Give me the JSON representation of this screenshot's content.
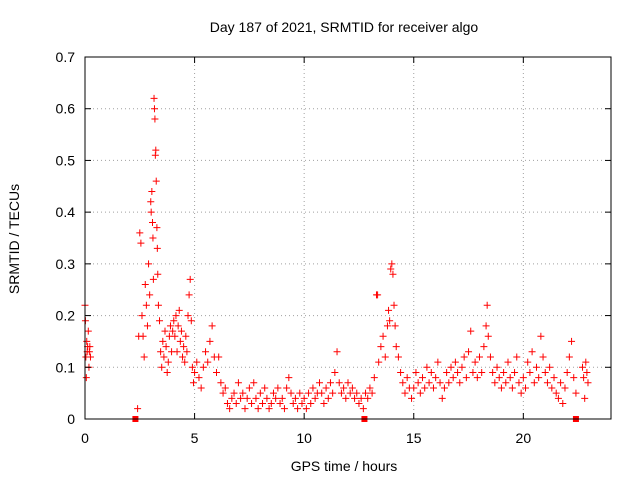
{
  "chart_data": {
    "type": "scatter",
    "title": "Day 187 of 2021, SRMTID for receiver algo",
    "xlabel": "GPS time / hours",
    "ylabel": "SRMTID / TECUs",
    "xlim": [
      0,
      24
    ],
    "ylim": [
      0,
      0.7
    ],
    "grid": true,
    "marker": "+",
    "x_ticks": [
      0,
      5,
      10,
      15,
      20
    ],
    "x_tick_labels": [
      "0",
      "5",
      "10",
      "15",
      "20"
    ],
    "y_ticks": [
      0,
      0.1,
      0.2,
      0.3,
      0.4,
      0.5,
      0.6,
      0.7
    ],
    "y_tick_labels": [
      "0",
      "0.1",
      "0.2",
      "0.3",
      "0.4",
      "0.5",
      "0.6",
      "0.7"
    ],
    "series_color": "#ff0000",
    "series": [
      {
        "name": "SRMTID",
        "points": [
          [
            0.0,
            0.22
          ],
          [
            0.02,
            0.19
          ],
          [
            0.04,
            0.12
          ],
          [
            0.06,
            0.08
          ],
          [
            0.08,
            0.15
          ],
          [
            0.1,
            0.13
          ],
          [
            0.12,
            0.14
          ],
          [
            0.15,
            0.17
          ],
          [
            0.18,
            0.1
          ],
          [
            0.2,
            0.13
          ],
          [
            0.22,
            0.14
          ],
          [
            0.25,
            0.12
          ],
          [
            2.4,
            0.02
          ],
          [
            2.45,
            0.16
          ],
          [
            2.5,
            0.36
          ],
          [
            2.55,
            0.34
          ],
          [
            2.6,
            0.2
          ],
          [
            2.65,
            0.16
          ],
          [
            2.7,
            0.12
          ],
          [
            2.75,
            0.26
          ],
          [
            2.8,
            0.22
          ],
          [
            2.85,
            0.18
          ],
          [
            2.9,
            0.3
          ],
          [
            2.95,
            0.24
          ],
          [
            3.0,
            0.42
          ],
          [
            3.02,
            0.4
          ],
          [
            3.05,
            0.44
          ],
          [
            3.08,
            0.38
          ],
          [
            3.1,
            0.35
          ],
          [
            3.12,
            0.27
          ],
          [
            3.15,
            0.62
          ],
          [
            3.17,
            0.6
          ],
          [
            3.19,
            0.58
          ],
          [
            3.21,
            0.51
          ],
          [
            3.23,
            0.52
          ],
          [
            3.25,
            0.46
          ],
          [
            3.28,
            0.37
          ],
          [
            3.3,
            0.33
          ],
          [
            3.32,
            0.28
          ],
          [
            3.35,
            0.22
          ],
          [
            3.4,
            0.19
          ],
          [
            3.45,
            0.13
          ],
          [
            3.5,
            0.1
          ],
          [
            3.55,
            0.15
          ],
          [
            3.6,
            0.12
          ],
          [
            3.65,
            0.17
          ],
          [
            3.7,
            0.14
          ],
          [
            3.75,
            0.09
          ],
          [
            3.8,
            0.11
          ],
          [
            3.85,
            0.16
          ],
          [
            3.9,
            0.18
          ],
          [
            3.95,
            0.13
          ],
          [
            4.0,
            0.17
          ],
          [
            4.05,
            0.19
          ],
          [
            4.1,
            0.16
          ],
          [
            4.15,
            0.2
          ],
          [
            4.2,
            0.13
          ],
          [
            4.25,
            0.18
          ],
          [
            4.3,
            0.21
          ],
          [
            4.35,
            0.15
          ],
          [
            4.4,
            0.17
          ],
          [
            4.45,
            0.12
          ],
          [
            4.5,
            0.14
          ],
          [
            4.55,
            0.11
          ],
          [
            4.6,
            0.16
          ],
          [
            4.65,
            0.13
          ],
          [
            4.7,
            0.2
          ],
          [
            4.75,
            0.24
          ],
          [
            4.8,
            0.27
          ],
          [
            4.85,
            0.19
          ],
          [
            4.9,
            0.1
          ],
          [
            4.95,
            0.07
          ],
          [
            5.0,
            0.09
          ],
          [
            5.1,
            0.11
          ],
          [
            5.2,
            0.08
          ],
          [
            5.3,
            0.06
          ],
          [
            5.4,
            0.1
          ],
          [
            5.5,
            0.13
          ],
          [
            5.6,
            0.11
          ],
          [
            5.7,
            0.15
          ],
          [
            5.8,
            0.18
          ],
          [
            5.9,
            0.12
          ],
          [
            6.0,
            0.09
          ],
          [
            6.1,
            0.12
          ],
          [
            6.2,
            0.07
          ],
          [
            6.3,
            0.05
          ],
          [
            6.4,
            0.06
          ],
          [
            6.5,
            0.03
          ],
          [
            6.6,
            0.02
          ],
          [
            6.7,
            0.04
          ],
          [
            6.8,
            0.05
          ],
          [
            6.9,
            0.03
          ],
          [
            7.0,
            0.07
          ],
          [
            7.1,
            0.04
          ],
          [
            7.2,
            0.05
          ],
          [
            7.3,
            0.02
          ],
          [
            7.4,
            0.04
          ],
          [
            7.5,
            0.06
          ],
          [
            7.6,
            0.03
          ],
          [
            7.7,
            0.07
          ],
          [
            7.8,
            0.04
          ],
          [
            7.9,
            0.02
          ],
          [
            8.0,
            0.05
          ],
          [
            8.1,
            0.03
          ],
          [
            8.2,
            0.06
          ],
          [
            8.3,
            0.04
          ],
          [
            8.4,
            0.02
          ],
          [
            8.5,
            0.03
          ],
          [
            8.6,
            0.05
          ],
          [
            8.7,
            0.04
          ],
          [
            8.8,
            0.06
          ],
          [
            8.9,
            0.03
          ],
          [
            9.0,
            0.04
          ],
          [
            9.1,
            0.02
          ],
          [
            9.2,
            0.06
          ],
          [
            9.3,
            0.08
          ],
          [
            9.4,
            0.05
          ],
          [
            9.5,
            0.03
          ],
          [
            9.6,
            0.04
          ],
          [
            9.7,
            0.02
          ],
          [
            9.8,
            0.05
          ],
          [
            9.9,
            0.03
          ],
          [
            10.0,
            0.04
          ],
          [
            10.1,
            0.02
          ],
          [
            10.2,
            0.05
          ],
          [
            10.3,
            0.03
          ],
          [
            10.4,
            0.06
          ],
          [
            10.5,
            0.04
          ],
          [
            10.6,
            0.05
          ],
          [
            10.7,
            0.07
          ],
          [
            10.8,
            0.05
          ],
          [
            10.9,
            0.03
          ],
          [
            11.0,
            0.06
          ],
          [
            11.1,
            0.04
          ],
          [
            11.2,
            0.07
          ],
          [
            11.3,
            0.05
          ],
          [
            11.4,
            0.09
          ],
          [
            11.5,
            0.13
          ],
          [
            11.6,
            0.07
          ],
          [
            11.7,
            0.05
          ],
          [
            11.8,
            0.06
          ],
          [
            11.9,
            0.04
          ],
          [
            12.0,
            0.07
          ],
          [
            12.1,
            0.05
          ],
          [
            12.2,
            0.06
          ],
          [
            12.3,
            0.04
          ],
          [
            12.4,
            0.05
          ],
          [
            12.5,
            0.03
          ],
          [
            12.6,
            0.04
          ],
          [
            12.7,
            0.02
          ],
          [
            12.8,
            0.05
          ],
          [
            12.9,
            0.04
          ],
          [
            13.0,
            0.06
          ],
          [
            13.1,
            0.05
          ],
          [
            13.2,
            0.08
          ],
          [
            13.3,
            0.24
          ],
          [
            13.35,
            0.24
          ],
          [
            13.4,
            0.11
          ],
          [
            13.5,
            0.14
          ],
          [
            13.6,
            0.16
          ],
          [
            13.7,
            0.12
          ],
          [
            13.8,
            0.18
          ],
          [
            13.85,
            0.21
          ],
          [
            13.9,
            0.19
          ],
          [
            13.95,
            0.29
          ],
          [
            14.0,
            0.3
          ],
          [
            14.05,
            0.28
          ],
          [
            14.1,
            0.22
          ],
          [
            14.15,
            0.18
          ],
          [
            14.2,
            0.14
          ],
          [
            14.3,
            0.12
          ],
          [
            14.4,
            0.09
          ],
          [
            14.5,
            0.07
          ],
          [
            14.6,
            0.05
          ],
          [
            14.7,
            0.08
          ],
          [
            14.8,
            0.06
          ],
          [
            14.9,
            0.04
          ],
          [
            15.0,
            0.06
          ],
          [
            15.1,
            0.09
          ],
          [
            15.2,
            0.07
          ],
          [
            15.3,
            0.05
          ],
          [
            15.4,
            0.08
          ],
          [
            15.5,
            0.06
          ],
          [
            15.6,
            0.1
          ],
          [
            15.7,
            0.07
          ],
          [
            15.8,
            0.09
          ],
          [
            15.9,
            0.06
          ],
          [
            16.0,
            0.08
          ],
          [
            16.1,
            0.11
          ],
          [
            16.2,
            0.07
          ],
          [
            16.3,
            0.04
          ],
          [
            16.4,
            0.06
          ],
          [
            16.5,
            0.09
          ],
          [
            16.6,
            0.07
          ],
          [
            16.7,
            0.1
          ],
          [
            16.8,
            0.08
          ],
          [
            16.9,
            0.11
          ],
          [
            17.0,
            0.09
          ],
          [
            17.1,
            0.07
          ],
          [
            17.2,
            0.1
          ],
          [
            17.3,
            0.12
          ],
          [
            17.4,
            0.08
          ],
          [
            17.5,
            0.13
          ],
          [
            17.6,
            0.17
          ],
          [
            17.7,
            0.09
          ],
          [
            17.8,
            0.11
          ],
          [
            17.9,
            0.08
          ],
          [
            18.0,
            0.12
          ],
          [
            18.1,
            0.09
          ],
          [
            18.2,
            0.14
          ],
          [
            18.3,
            0.18
          ],
          [
            18.35,
            0.22
          ],
          [
            18.4,
            0.16
          ],
          [
            18.5,
            0.12
          ],
          [
            18.6,
            0.09
          ],
          [
            18.7,
            0.07
          ],
          [
            18.8,
            0.1
          ],
          [
            18.9,
            0.08
          ],
          [
            19.0,
            0.06
          ],
          [
            19.1,
            0.09
          ],
          [
            19.2,
            0.07
          ],
          [
            19.3,
            0.11
          ],
          [
            19.4,
            0.08
          ],
          [
            19.5,
            0.06
          ],
          [
            19.6,
            0.09
          ],
          [
            19.7,
            0.12
          ],
          [
            19.8,
            0.07
          ],
          [
            19.9,
            0.05
          ],
          [
            20.0,
            0.08
          ],
          [
            20.1,
            0.06
          ],
          [
            20.2,
            0.11
          ],
          [
            20.3,
            0.09
          ],
          [
            20.4,
            0.13
          ],
          [
            20.5,
            0.07
          ],
          [
            20.6,
            0.1
          ],
          [
            20.7,
            0.08
          ],
          [
            20.8,
            0.16
          ],
          [
            20.9,
            0.12
          ],
          [
            21.0,
            0.09
          ],
          [
            21.1,
            0.07
          ],
          [
            21.2,
            0.1
          ],
          [
            21.3,
            0.06
          ],
          [
            21.4,
            0.08
          ],
          [
            21.5,
            0.05
          ],
          [
            21.6,
            0.04
          ],
          [
            21.7,
            0.07
          ],
          [
            21.8,
            0.03
          ],
          [
            21.9,
            0.06
          ],
          [
            22.0,
            0.09
          ],
          [
            22.1,
            0.12
          ],
          [
            22.2,
            0.15
          ],
          [
            22.3,
            0.08
          ],
          [
            22.4,
            0.05
          ],
          [
            22.7,
            0.1
          ],
          [
            22.75,
            0.08
          ],
          [
            22.8,
            0.04
          ],
          [
            22.85,
            0.11
          ],
          [
            22.9,
            0.09
          ],
          [
            22.95,
            0.07
          ]
        ]
      }
    ],
    "baseline_markers_x": [
      2.3,
      12.75,
      22.4
    ]
  }
}
